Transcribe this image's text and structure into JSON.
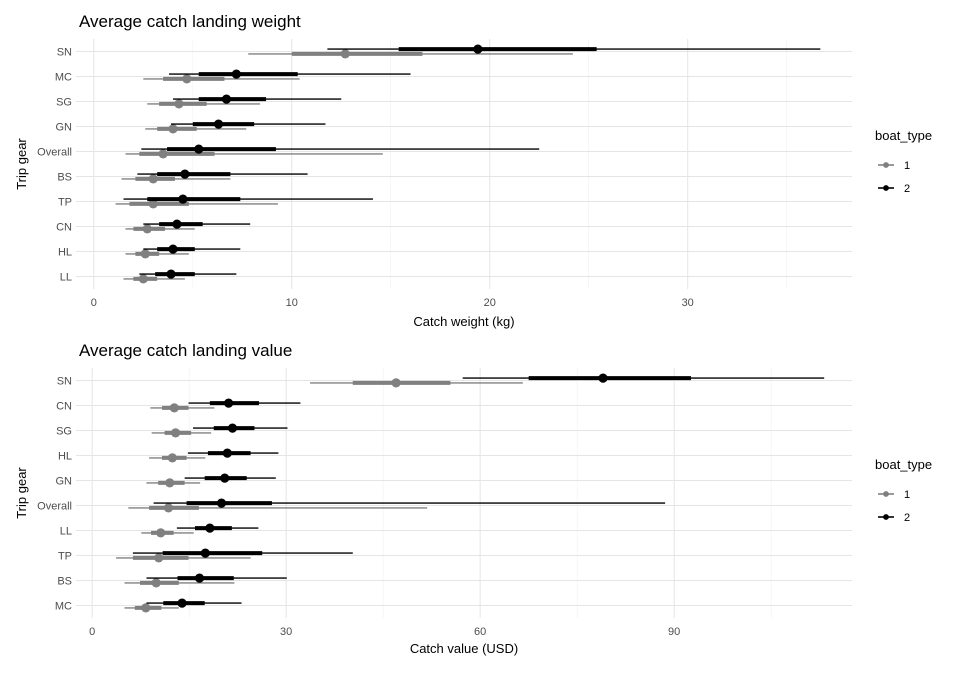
{
  "chart_data": [
    {
      "type": "interval",
      "title": "Average catch landing weight",
      "xlabel": "Catch weight (kg)",
      "ylabel": "Trip gear",
      "xlim": [
        -0.9,
        38.3
      ],
      "xticks": [
        0,
        10,
        20,
        30
      ],
      "grid": true,
      "legend": {
        "title": "boat_type",
        "position": "right",
        "entries": [
          "1",
          "2"
        ]
      },
      "categories": [
        "SN",
        "MC",
        "SG",
        "GN",
        "Overall",
        "BS",
        "TP",
        "CN",
        "HL",
        "LL"
      ],
      "series": [
        {
          "name": "1",
          "color": "#808080",
          "point": [
            12.7,
            4.7,
            4.3,
            4.0,
            3.5,
            3.0,
            3.0,
            2.7,
            2.6,
            2.5
          ],
          "inner_low": [
            10.0,
            3.5,
            3.3,
            3.2,
            2.3,
            2.1,
            1.8,
            2.0,
            2.1,
            2.0
          ],
          "inner_high": [
            16.6,
            6.6,
            5.7,
            5.2,
            6.1,
            4.1,
            4.8,
            3.6,
            3.3,
            3.2
          ],
          "outer_low": [
            7.8,
            2.5,
            2.7,
            2.6,
            1.6,
            1.4,
            1.1,
            1.6,
            1.6,
            1.5
          ],
          "outer_high": [
            24.2,
            10.4,
            8.4,
            7.7,
            14.6,
            6.9,
            9.3,
            5.1,
            4.8,
            4.6
          ]
        },
        {
          "name": "2",
          "color": "#000000",
          "point": [
            19.4,
            7.2,
            6.7,
            6.3,
            5.3,
            4.6,
            4.5,
            4.2,
            4.0,
            3.9
          ],
          "inner_low": [
            15.4,
            5.3,
            5.3,
            5.0,
            3.7,
            3.2,
            2.7,
            3.3,
            3.2,
            3.1
          ],
          "inner_high": [
            25.4,
            10.3,
            8.7,
            8.1,
            9.2,
            6.9,
            7.4,
            5.5,
            5.1,
            5.1
          ],
          "outer_low": [
            11.8,
            3.8,
            4.0,
            3.9,
            2.4,
            2.2,
            1.5,
            2.5,
            2.5,
            2.3
          ],
          "outer_high": [
            36.7,
            16.0,
            12.5,
            11.7,
            22.5,
            10.8,
            14.1,
            7.9,
            7.4,
            7.2
          ]
        }
      ]
    },
    {
      "type": "interval",
      "title": "Average catch landing value",
      "xlabel": "Catch value (USD)",
      "ylabel": "Trip gear",
      "xlim": [
        -2.5,
        117.5
      ],
      "xticks": [
        0,
        30,
        60,
        90
      ],
      "grid": true,
      "legend": {
        "title": "boat_type",
        "position": "right",
        "entries": [
          "1",
          "2"
        ]
      },
      "categories": [
        "SN",
        "CN",
        "SG",
        "HL",
        "GN",
        "Overall",
        "LL",
        "TP",
        "BS",
        "MC"
      ],
      "series": [
        {
          "name": "1",
          "color": "#808080",
          "point": [
            47.0,
            12.7,
            12.9,
            12.4,
            12.0,
            11.8,
            10.6,
            10.3,
            9.9,
            8.3
          ],
          "inner_low": [
            40.3,
            10.8,
            11.2,
            10.8,
            10.2,
            8.8,
            9.1,
            6.3,
            7.4,
            6.6
          ],
          "inner_high": [
            55.4,
            14.9,
            15.3,
            14.6,
            14.3,
            16.5,
            12.6,
            14.9,
            13.4,
            10.7
          ],
          "outer_low": [
            33.7,
            9.0,
            9.2,
            8.8,
            8.4,
            5.6,
            7.6,
            3.7,
            5.0,
            5.0
          ],
          "outer_high": [
            66.6,
            18.9,
            18.4,
            17.5,
            16.7,
            51.8,
            15.7,
            24.5,
            22.0,
            13.4
          ]
        },
        {
          "name": "2",
          "color": "#000000",
          "point": [
            79.0,
            21.1,
            21.7,
            20.9,
            20.5,
            20.0,
            18.2,
            17.5,
            16.6,
            13.9
          ],
          "inner_low": [
            67.5,
            18.2,
            18.8,
            17.9,
            17.4,
            14.6,
            15.9,
            10.9,
            13.2,
            11.0
          ],
          "inner_high": [
            92.6,
            25.8,
            25.1,
            24.5,
            23.9,
            27.8,
            21.6,
            26.3,
            21.9,
            17.4
          ],
          "outer_low": [
            57.3,
            14.9,
            15.6,
            14.8,
            14.3,
            9.5,
            13.1,
            6.3,
            8.4,
            8.4
          ],
          "outer_high": [
            113.2,
            32.2,
            30.2,
            28.8,
            28.4,
            88.6,
            25.7,
            40.3,
            30.1,
            23.1
          ]
        }
      ]
    }
  ]
}
